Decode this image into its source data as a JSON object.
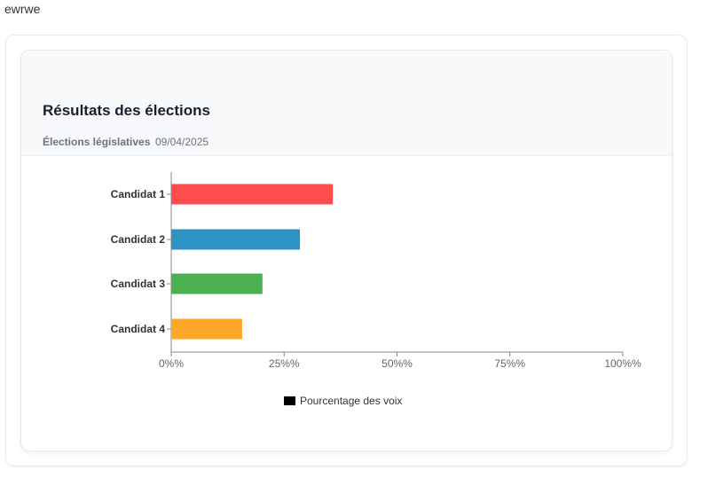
{
  "page": {
    "top_text": "ewrwe"
  },
  "card": {
    "title": "Résultats des élections",
    "subtitle": "Élections législatives",
    "date": "09/04/2025"
  },
  "chart_data": {
    "type": "bar",
    "orientation": "horizontal",
    "categories": [
      "Candidat 1",
      "Candidat 2",
      "Candidat 3",
      "Candidat 4"
    ],
    "series": [
      {
        "name": "Pourcentage des voix",
        "values": [
          35.8,
          28.5,
          20.2,
          15.7
        ],
        "colors": [
          "#ff4d4f",
          "#2e93c2",
          "#4caf50",
          "#ffa726"
        ]
      }
    ],
    "xlim": [
      0,
      100
    ],
    "xticks": [
      0,
      25,
      50,
      75,
      100
    ],
    "xtick_labels": [
      "0%%",
      "25%%",
      "50%%",
      "75%%",
      "100%%"
    ],
    "legend": {
      "position": "bottom-center",
      "swatch_color": "#000000",
      "label": "Pourcentage des voix"
    },
    "grid": false,
    "axis_color": "#888888"
  }
}
